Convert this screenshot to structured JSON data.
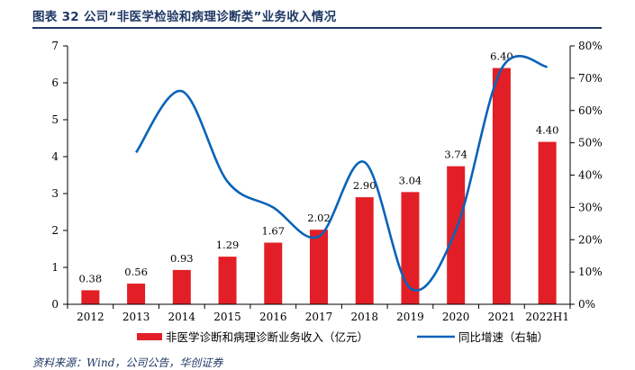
{
  "title": "图表 32  公司“非医学检验和病理诊断类”业务收入情况",
  "source": "资料来源：Wind，公司公告，华创证券",
  "chart_data": {
    "type": "bar",
    "categories": [
      "2012",
      "2013",
      "2014",
      "2015",
      "2016",
      "2017",
      "2018",
      "2019",
      "2020",
      "2021",
      "2022H1"
    ],
    "series": [
      {
        "name": "非医学诊断和病理诊断业务收入（亿元）",
        "type": "bar",
        "axis": "left",
        "color": "#e21f26",
        "values": [
          0.38,
          0.56,
          0.93,
          1.29,
          1.67,
          2.02,
          2.9,
          3.04,
          3.74,
          6.4,
          4.4
        ],
        "labels": [
          "0.38",
          "0.56",
          "0.93",
          "1.29",
          "1.67",
          "2.02",
          "2.90",
          "3.04",
          "3.74",
          "6.40",
          "4.40"
        ]
      },
      {
        "name": "同比增速（右轴）",
        "type": "line",
        "axis": "right",
        "color": "#0a63b8",
        "values": [
          null,
          47,
          66,
          38,
          30,
          21,
          44,
          5,
          23,
          73,
          73.5
        ]
      }
    ],
    "ylim": [
      0,
      7
    ],
    "yticks": [
      "0",
      "1",
      "2",
      "3",
      "4",
      "5",
      "6",
      "7"
    ],
    "y2lim": [
      0,
      80
    ],
    "y2ticks": [
      "0%",
      "10%",
      "20%",
      "30%",
      "40%",
      "50%",
      "60%",
      "70%",
      "80%"
    ],
    "legend_position": "bottom",
    "grid": false
  }
}
